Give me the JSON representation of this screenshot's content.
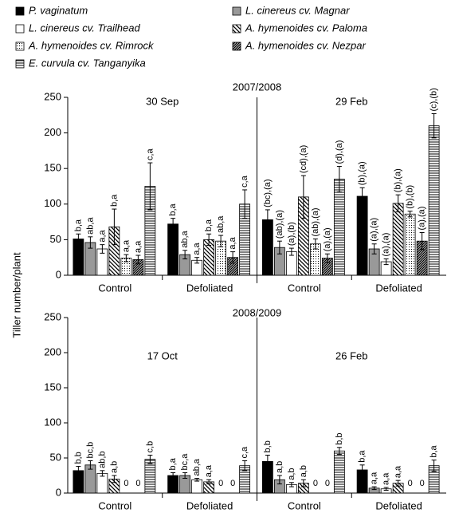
{
  "chart_data": [
    {
      "type": "bar",
      "title": "2007/2008",
      "dates": [
        "30 Sep",
        "29 Feb"
      ],
      "ylabel": "Tiller number/plant",
      "categories": [
        "Control",
        "Defoliated",
        "Control",
        "Defoliated"
      ],
      "ylim": [
        0,
        250
      ],
      "yticks": [
        0,
        50,
        100,
        150,
        200,
        250
      ],
      "series": [
        {
          "name": "P. vaginatum",
          "pattern": "solid-black",
          "color": "#000000",
          "values": [
            51,
            72,
            78,
            111
          ],
          "errors": [
            7,
            8,
            14,
            12
          ],
          "labels": [
            "b,a",
            "b,a",
            "(bc),(a)",
            "(b),(a)"
          ]
        },
        {
          "name": "L. cinereus cv. Magnar",
          "pattern": "solid-gray",
          "color": "#999999",
          "values": [
            46,
            29,
            39,
            37
          ],
          "errors": [
            8,
            6,
            9,
            7
          ],
          "labels": [
            "ab,a",
            "ab,a",
            "(ab),(a)",
            "(a),(a)"
          ]
        },
        {
          "name": "L. cinereus cv. Trailhead",
          "pattern": "white",
          "color": "#ffffff",
          "values": [
            37,
            21,
            33,
            19
          ],
          "errors": [
            6,
            4,
            5,
            4
          ],
          "labels": [
            "a,a",
            "a,a",
            "(a),(b)",
            "(a),(a)"
          ]
        },
        {
          "name": "A. hymenoides cv. Paloma",
          "pattern": "diagonal-back",
          "color": "#000000",
          "values": [
            68,
            50,
            110,
            101
          ],
          "errors": [
            25,
            8,
            30,
            12
          ],
          "labels": [
            "b,a",
            "b,a",
            "(cd),(a)",
            "(b),(a)"
          ]
        },
        {
          "name": "A. hymenoides cv. Rimrock",
          "pattern": "dots",
          "color": "#000000",
          "values": [
            24,
            48,
            44,
            86
          ],
          "errors": [
            5,
            8,
            7,
            4
          ],
          "labels": [
            "a,a",
            "ab,a",
            "(ab),(a)",
            "(b),(b)"
          ]
        },
        {
          "name": "A. hymenoides cv. Nezpar",
          "pattern": "diagonal-forward",
          "color": "#000000",
          "values": [
            22,
            25,
            24,
            48
          ],
          "errors": [
            6,
            8,
            6,
            12
          ],
          "labels": [
            "a,a",
            "a,a",
            "(a),(a)",
            "(a),(a)"
          ]
        },
        {
          "name": "E. curvula cv. Tanganyika",
          "pattern": "horizontal",
          "color": "#000000",
          "values": [
            125,
            100,
            135,
            210
          ],
          "errors": [
            33,
            20,
            18,
            17
          ],
          "labels": [
            "c,a",
            "c,a",
            "(d),(a)",
            "(c),(b)"
          ]
        }
      ]
    },
    {
      "type": "bar",
      "title": "2008/2009",
      "dates": [
        "17 Oct",
        "26 Feb"
      ],
      "categories": [
        "Control",
        "Defoliated",
        "Control",
        "Defoliated"
      ],
      "ylim": [
        0,
        250
      ],
      "yticks": [
        0,
        50,
        100,
        150,
        200,
        250
      ],
      "series": [
        {
          "pattern": "solid-black",
          "values": [
            32,
            25,
            45,
            33
          ],
          "errors": [
            6,
            4,
            9,
            7
          ],
          "labels": [
            "b,b",
            "b,a",
            "b,b",
            "b,a"
          ]
        },
        {
          "pattern": "solid-gray",
          "values": [
            40,
            25,
            19,
            7
          ],
          "errors": [
            6,
            4,
            6,
            2
          ],
          "labels": [
            "bc,b",
            "bc,a",
            "a,b",
            "a,a"
          ]
        },
        {
          "pattern": "white",
          "values": [
            28,
            19,
            12,
            6
          ],
          "errors": [
            4,
            2,
            3,
            2
          ],
          "labels": [
            "ab,b",
            "ab,a",
            "a,b",
            "a,a"
          ]
        },
        {
          "pattern": "diagonal-back",
          "values": [
            20,
            16,
            14,
            14
          ],
          "errors": [
            5,
            3,
            5,
            4
          ],
          "labels": [
            "a,b",
            "a,a",
            "a,b",
            "a,a"
          ]
        },
        {
          "pattern": "dots",
          "values": [
            0,
            0,
            0,
            0
          ],
          "errors": [
            null,
            null,
            null,
            null
          ],
          "labels": [
            "0",
            "0",
            "0",
            "0"
          ]
        },
        {
          "pattern": "diagonal-forward",
          "values": [
            0,
            0,
            0,
            0
          ],
          "errors": [
            null,
            null,
            null,
            null
          ],
          "labels": [
            "0",
            "0",
            "0",
            "0"
          ]
        },
        {
          "pattern": "horizontal",
          "values": [
            48,
            39,
            60,
            39
          ],
          "errors": [
            6,
            7,
            5,
            8
          ],
          "labels": [
            "c,b",
            "c,a",
            "b,b",
            "b,a"
          ]
        }
      ]
    }
  ]
}
